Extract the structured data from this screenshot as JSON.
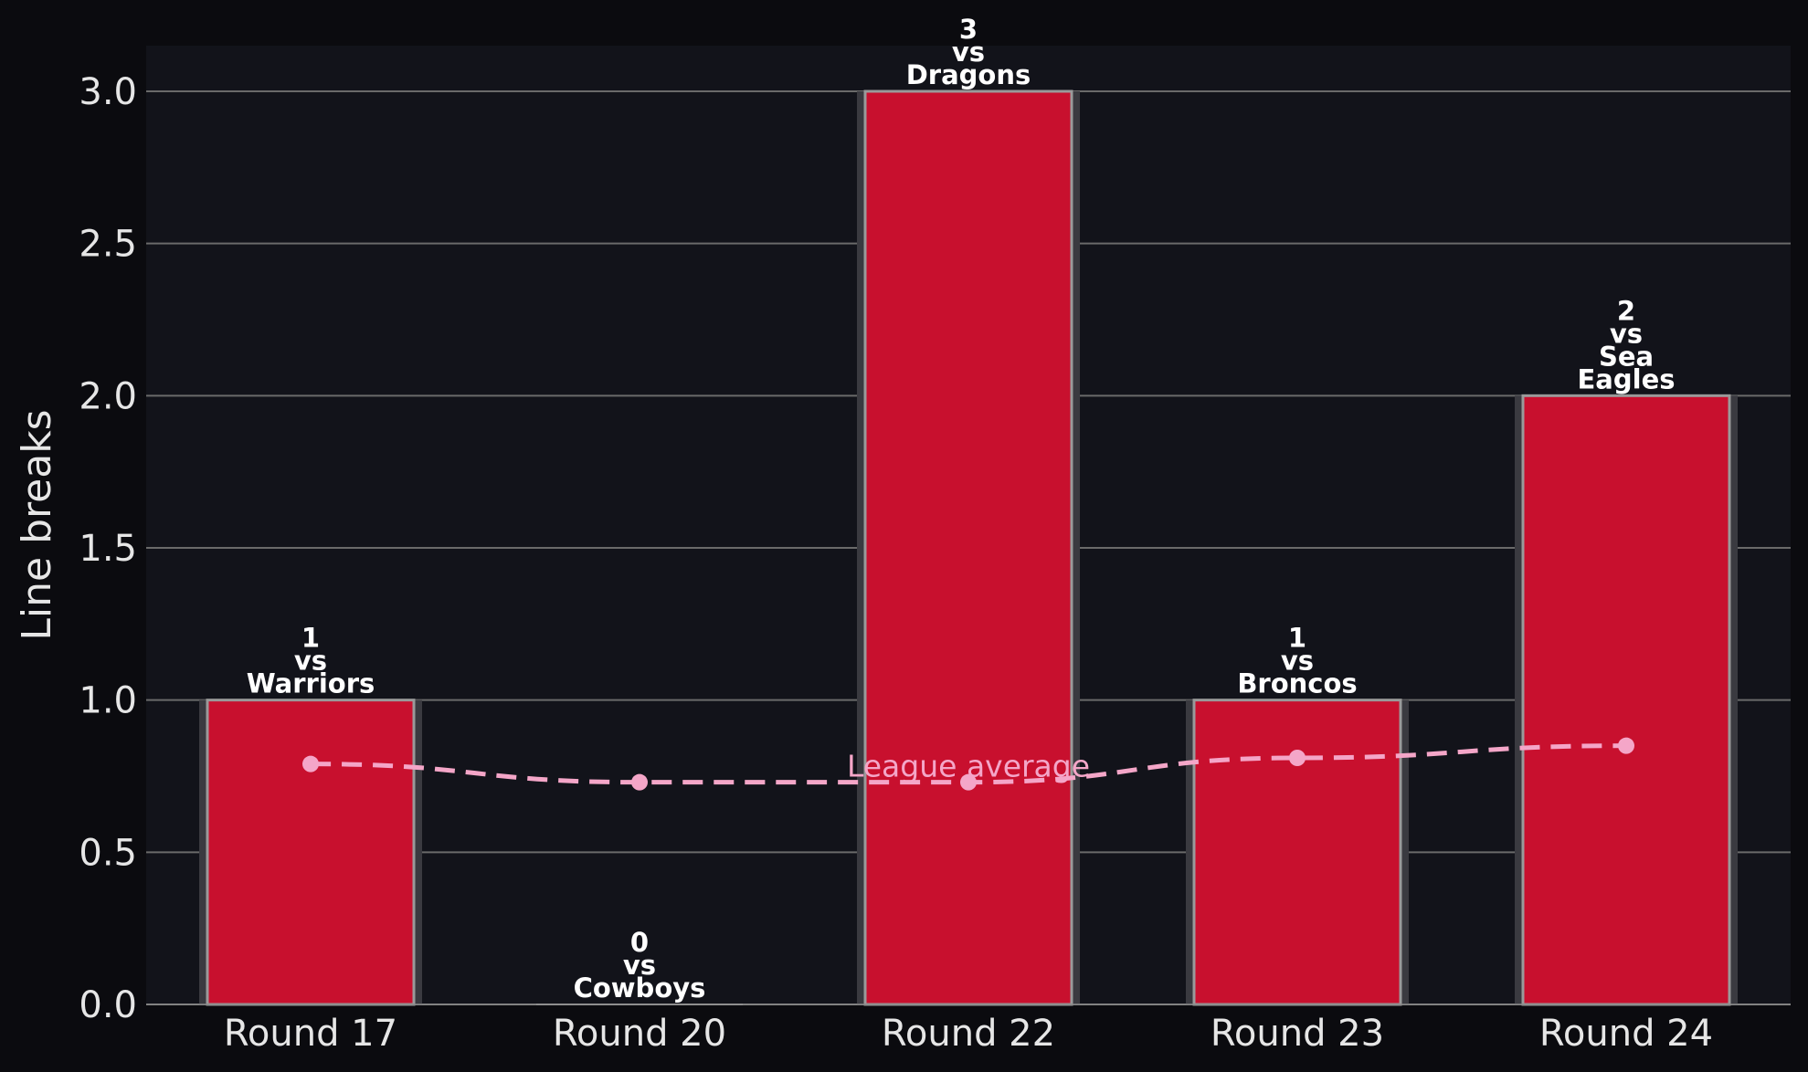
{
  "chart_data": {
    "type": "bar",
    "title": "",
    "xlabel": "",
    "ylabel": "Line breaks",
    "ylim": [
      0,
      3.15
    ],
    "yticks": [
      "0.0",
      "0.5",
      "1.0",
      "1.5",
      "2.0",
      "2.5",
      "3.0"
    ],
    "grid": "horizontal",
    "categories": [
      "Round 17",
      "Round 20",
      "Round 22",
      "Round 23",
      "Round 24"
    ],
    "series": [
      {
        "values": [
          1,
          0,
          3,
          1,
          2
        ],
        "labels": [
          "1\nvs\nWarriors",
          "0\nvs\nCowboys",
          "3\nvs\nDragons",
          "1\nvs\nBroncos",
          "2\nvs\nSea\nEagles"
        ]
      },
      {
        "name": "League average",
        "type": "line",
        "style": "dashed",
        "values": [
          0.79,
          0.73,
          0.73,
          0.81,
          0.85
        ]
      }
    ],
    "colors": {
      "bar": "#c8102e",
      "bar_edge": "#9a9a9a",
      "average_line": "#f4a6c8",
      "plot_background": "#12131a",
      "page_background": "#0b0b0f",
      "grid": "#6a6a6a"
    }
  }
}
